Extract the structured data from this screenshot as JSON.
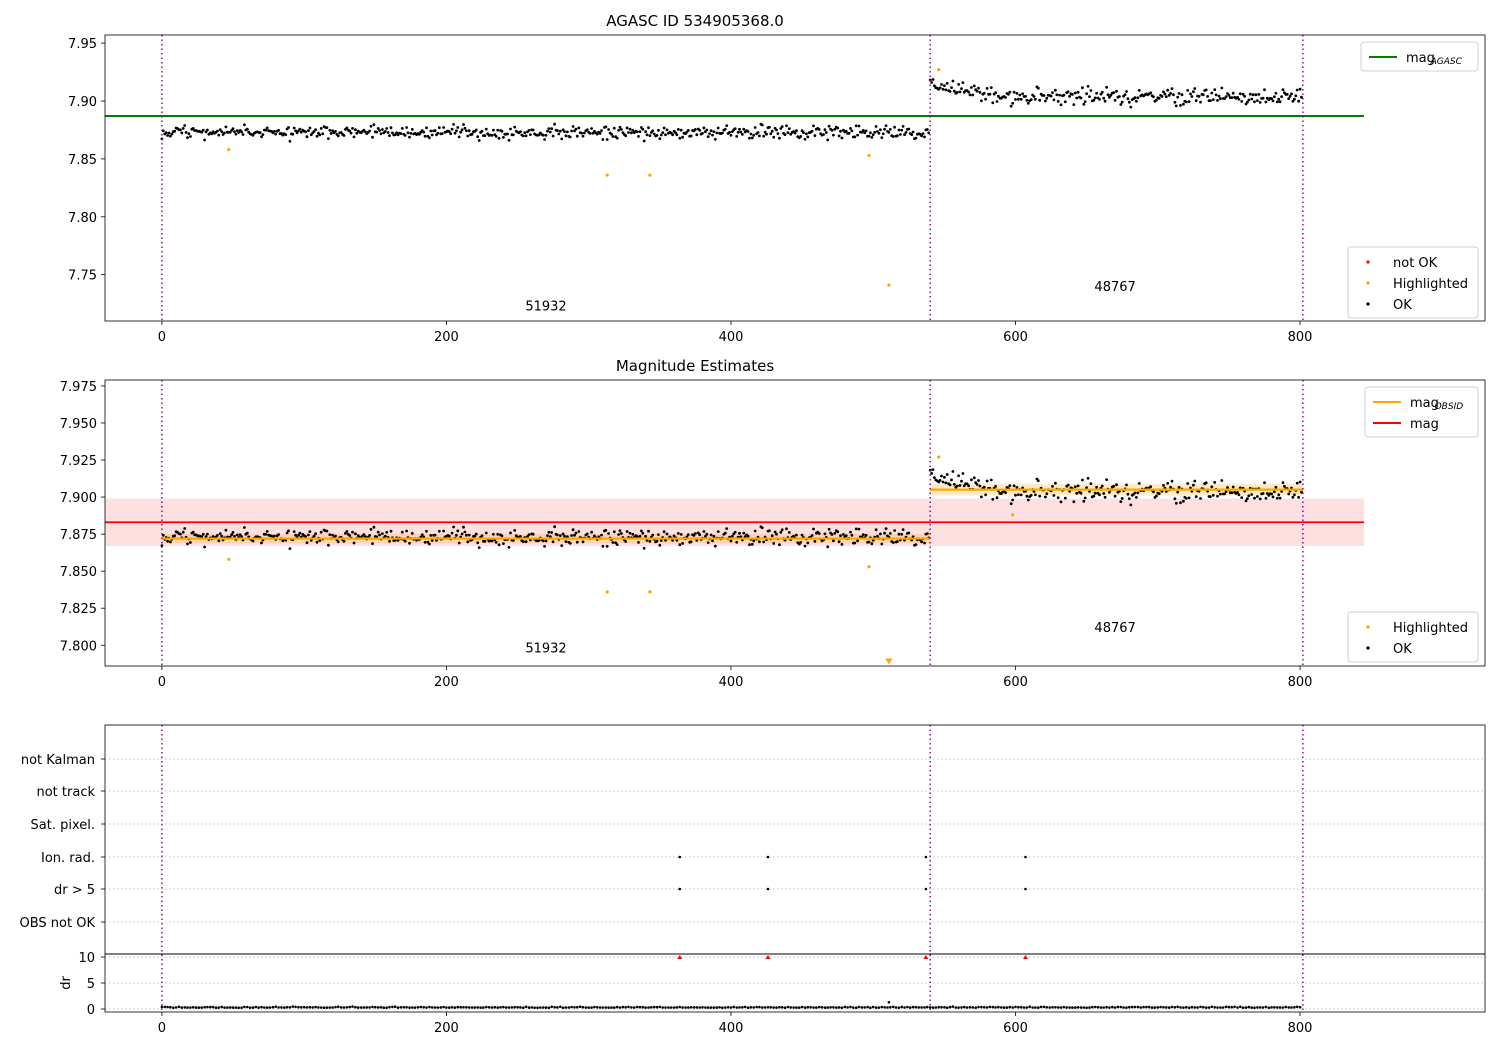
{
  "colors": {
    "ok": "#000000",
    "highlighted": "#ffa500",
    "not_ok": "#ff0000",
    "agasc_line": "#008000",
    "mag_line": "#ff0000",
    "obsid_line": "#ffa500",
    "vline": "#800080",
    "grid": "#b0b0b0"
  },
  "chart_data": [
    {
      "type": "scatter",
      "title": "AGASC ID 534905368.0",
      "xlim": [
        -40,
        930
      ],
      "ylim": [
        7.71,
        7.957
      ],
      "xticks": [
        "0",
        "200",
        "400",
        "600",
        "800"
      ],
      "yticks": [
        "7.75",
        "7.80",
        "7.85",
        "7.90",
        "7.95"
      ],
      "vlines_x": [
        0,
        540,
        802
      ],
      "obsid_labels": [
        {
          "text": "51932",
          "x": 270,
          "y": 7.719
        },
        {
          "text": "48767",
          "x": 670,
          "y": 7.736
        }
      ],
      "hline": {
        "name": "mag",
        "subscript": "AGASC",
        "y": 7.887,
        "x": [
          -40,
          845
        ]
      },
      "segments": [
        {
          "x0": 0,
          "x1": 540,
          "level": 7.873,
          "spread": 0.004
        },
        {
          "x0": 540,
          "x1": 802,
          "level": 7.904,
          "spread": 0.005,
          "start_level": 7.915
        }
      ],
      "highlighted_points": [
        [
          47,
          7.858
        ],
        [
          313,
          7.836
        ],
        [
          343,
          7.836
        ],
        [
          497,
          7.853
        ],
        [
          511,
          7.741
        ],
        [
          546,
          7.927
        ]
      ],
      "not_ok_points": [],
      "legend_upper": [
        {
          "label": "mag",
          "subscript": "AGASC",
          "kind": "line",
          "color": "#008000"
        }
      ],
      "legend_lower": [
        {
          "label": "not OK",
          "kind": "dot",
          "color": "#ff0000"
        },
        {
          "label": "Highlighted",
          "kind": "dot",
          "color": "#ffa500"
        },
        {
          "label": "OK",
          "kind": "dot",
          "color": "#000000"
        }
      ]
    },
    {
      "type": "scatter",
      "title": "Magnitude Estimates",
      "xlim": [
        -40,
        930
      ],
      "ylim": [
        7.786,
        7.979
      ],
      "xticks": [
        "0",
        "200",
        "400",
        "600",
        "800"
      ],
      "yticks": [
        "7.800",
        "7.825",
        "7.850",
        "7.875",
        "7.900",
        "7.925",
        "7.950",
        "7.975"
      ],
      "vlines_x": [
        0,
        540,
        802
      ],
      "obsid_labels": [
        {
          "text": "51932",
          "x": 270,
          "y": 7.795
        },
        {
          "text": "48767",
          "x": 670,
          "y": 7.809
        }
      ],
      "hline": {
        "name": "mag",
        "y": 7.883,
        "x": [
          -40,
          845
        ],
        "band": [
          7.867,
          7.899
        ]
      },
      "obsid_mag": [
        {
          "x0": 0,
          "x1": 540,
          "y": 7.872,
          "band": [
            7.869,
            7.875
          ]
        },
        {
          "x0": 540,
          "x1": 802,
          "y": 7.905,
          "band": [
            7.901,
            7.909
          ]
        }
      ],
      "segments": [
        {
          "x0": 0,
          "x1": 540,
          "level": 7.873,
          "spread": 0.004
        },
        {
          "x0": 540,
          "x1": 802,
          "level": 7.904,
          "spread": 0.005,
          "start_level": 7.915
        }
      ],
      "highlighted_points": [
        [
          47,
          7.858
        ],
        [
          313,
          7.836
        ],
        [
          343,
          7.836
        ],
        [
          497,
          7.853
        ],
        [
          598,
          7.888
        ],
        [
          546,
          7.927
        ]
      ],
      "offscale_marker": {
        "x": 511,
        "y": 7.789
      },
      "legend_upper": [
        {
          "label": "mag",
          "subscript": "OBSID",
          "kind": "line",
          "color": "#ffa500"
        },
        {
          "label": "mag",
          "kind": "line",
          "color": "#ff0000"
        }
      ],
      "legend_lower": [
        {
          "label": "Highlighted",
          "kind": "dot",
          "color": "#ffa500"
        },
        {
          "label": "OK",
          "kind": "dot",
          "color": "#000000"
        }
      ]
    },
    {
      "type": "scatter",
      "xlim": [
        -40,
        930
      ],
      "vlines_x": [
        0,
        540,
        802
      ],
      "flags": [
        "not Kalman",
        "not track",
        "Sat. pixel.",
        "Ion. rad.",
        "dr > 5",
        "OBS not OK"
      ],
      "flag_points": {
        "Ion. rad.": [
          364,
          426,
          537,
          607
        ],
        "dr > 5": [
          364,
          426,
          537,
          607
        ]
      },
      "ylabel": "dr",
      "dr_ylim": [
        -0.5,
        10.5
      ],
      "dr_yticks": [
        "0",
        "5",
        "10"
      ],
      "dr_base": 0.25,
      "dr_clipped_x": [
        364,
        426,
        537,
        607
      ],
      "dr_outliers": [
        [
          511,
          1.3
        ]
      ],
      "xticks": [
        "0",
        "200",
        "400",
        "600",
        "800"
      ]
    }
  ]
}
